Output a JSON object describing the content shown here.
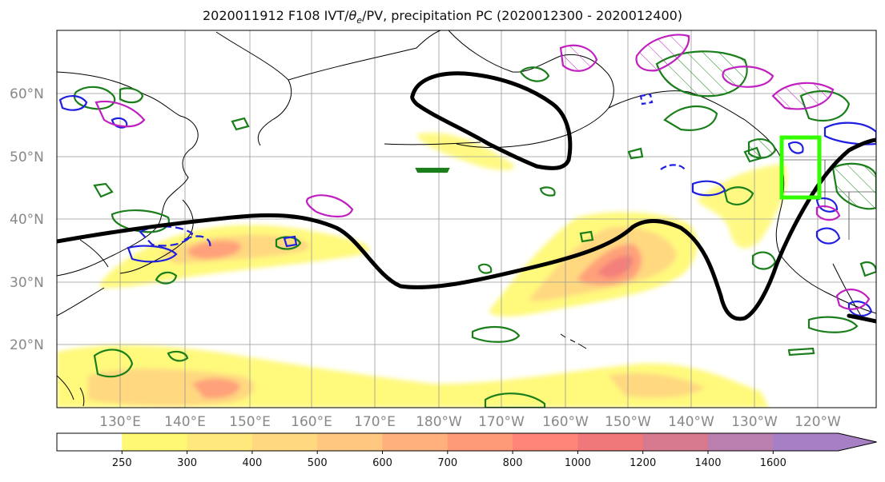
{
  "title": {
    "prefix": "2020011912 F108 IVT/",
    "theta": "θ",
    "theta_sub": "e",
    "suffix": "/PV, precipitation PC (2020012300 - 2020012400)"
  },
  "map": {
    "lat_labels": [
      "60°N",
      "50°N",
      "40°N",
      "30°N",
      "20°N"
    ],
    "lon_labels": [
      "130°E",
      "140°E",
      "150°E",
      "160°E",
      "170°E",
      "180°W",
      "170°W",
      "160°W",
      "150°W",
      "140°W",
      "130°W",
      "120°W"
    ]
  },
  "colorbar": {
    "labels": [
      "250",
      "300",
      "400",
      "500",
      "600",
      "700",
      "800",
      "1000",
      "1200",
      "1400",
      "1600"
    ],
    "colors": [
      "#ffffff",
      "#fff875",
      "#ffe97d",
      "#ffd880",
      "#ffc77f",
      "#ffb07c",
      "#ff9a79",
      "#ff8577",
      "#f0787a",
      "#d77a90",
      "#bb7faf",
      "#a67fc4"
    ]
  },
  "colors": {
    "pv_contour": "#000000",
    "theta_e_positive": "#1a7f1a",
    "theta_e_negative": "#1f1fe0",
    "precip": "#c020c0",
    "target_box": "#33ff00"
  }
}
